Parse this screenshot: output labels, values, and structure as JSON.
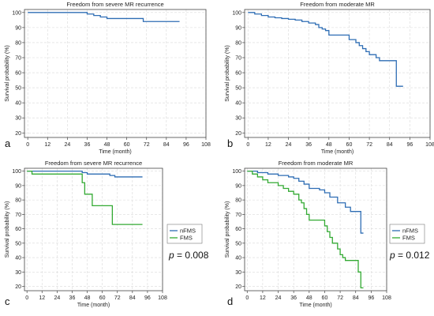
{
  "chart_data": [
    {
      "type": "line",
      "panel_letter": "a",
      "title": "Freedom from severe MR recurrence",
      "xlabel": "Time (month)",
      "ylabel": "Survival probability (%)",
      "xticks": [
        0,
        12,
        24,
        36,
        48,
        60,
        72,
        84,
        96,
        108
      ],
      "yticks": [
        20,
        30,
        40,
        50,
        60,
        70,
        80,
        90,
        100
      ],
      "xlim": [
        -2,
        108
      ],
      "ylim": [
        17,
        102
      ],
      "grid": true,
      "series": [
        {
          "color": "#2e6db4",
          "x": [
            0,
            34,
            36,
            40,
            44,
            48,
            66,
            70,
            92
          ],
          "y": [
            100,
            100,
            99,
            98,
            97,
            96,
            96,
            94,
            94
          ]
        }
      ]
    },
    {
      "type": "line",
      "panel_letter": "b",
      "title": "Freedom from moderate MR",
      "xlabel": "Time (month)",
      "ylabel": "Survival probability (%)",
      "xticks": [
        0,
        12,
        24,
        36,
        48,
        60,
        72,
        84,
        96,
        108
      ],
      "yticks": [
        20,
        30,
        40,
        50,
        60,
        70,
        80,
        90,
        100
      ],
      "xlim": [
        -2,
        108
      ],
      "ylim": [
        17,
        102
      ],
      "grid": true,
      "series": [
        {
          "color": "#2e6db4",
          "x": [
            0,
            4,
            8,
            12,
            16,
            20,
            24,
            28,
            32,
            36,
            40,
            42,
            44,
            46,
            48,
            56,
            60,
            64,
            66,
            68,
            70,
            72,
            74,
            76,
            78,
            86,
            88,
            92
          ],
          "y": [
            100,
            99,
            98,
            97,
            96.5,
            96,
            95.5,
            95,
            94,
            93,
            92,
            90,
            89,
            88,
            85,
            85,
            82,
            80,
            78,
            76,
            74,
            72,
            72,
            70,
            68,
            68,
            51,
            51
          ]
        }
      ]
    },
    {
      "type": "line",
      "panel_letter": "c",
      "title": "Freedom from severe MR recurrence",
      "xlabel": "Time (month)",
      "ylabel": "Survival probability (%)",
      "xticks": [
        0,
        12,
        24,
        36,
        48,
        60,
        72,
        84,
        96,
        108
      ],
      "yticks": [
        20,
        30,
        40,
        50,
        60,
        70,
        80,
        90,
        100
      ],
      "xlim": [
        -2,
        108
      ],
      "ylim": [
        17,
        102
      ],
      "grid": true,
      "p_value_prefix": "p",
      "p_value_text": "= 0.008",
      "legend": [
        "nFMS",
        "FMS"
      ],
      "series": [
        {
          "name": "nFMS",
          "color": "#2e6db4",
          "x": [
            0,
            36,
            44,
            48,
            66,
            70,
            92
          ],
          "y": [
            100,
            100,
            99,
            98,
            97,
            96,
            96
          ]
        },
        {
          "name": "FMS",
          "color": "#33aa33",
          "x": [
            0,
            4,
            42,
            44,
            46,
            52,
            66,
            68,
            92
          ],
          "y": [
            100,
            98,
            98,
            92,
            84,
            76,
            76,
            63,
            63
          ]
        }
      ]
    },
    {
      "type": "line",
      "panel_letter": "d",
      "title": "Freedom from moderate MR",
      "xlabel": "Time (month)",
      "ylabel": "Survival probability (%)",
      "xticks": [
        0,
        12,
        24,
        36,
        48,
        60,
        72,
        84,
        96,
        108
      ],
      "yticks": [
        20,
        30,
        40,
        50,
        60,
        70,
        80,
        90,
        100
      ],
      "xlim": [
        -2,
        108
      ],
      "ylim": [
        17,
        102
      ],
      "grid": true,
      "p_value_prefix": "p",
      "p_value_text": "= 0.012",
      "legend": [
        "nFMS",
        "FMS"
      ],
      "series": [
        {
          "name": "nFMS",
          "color": "#2e6db4",
          "x": [
            0,
            8,
            16,
            24,
            32,
            36,
            40,
            44,
            48,
            56,
            60,
            64,
            70,
            76,
            80,
            86,
            88,
            90
          ],
          "y": [
            100,
            99,
            98,
            97,
            96,
            95,
            93,
            91,
            88,
            87,
            85,
            82,
            78,
            75,
            72,
            72,
            57,
            57
          ]
        },
        {
          "name": "FMS",
          "color": "#33aa33",
          "x": [
            0,
            4,
            8,
            12,
            16,
            24,
            28,
            32,
            36,
            40,
            42,
            44,
            46,
            48,
            56,
            60,
            62,
            64,
            66,
            70,
            72,
            74,
            76,
            78,
            84,
            86,
            88,
            90
          ],
          "y": [
            100,
            98,
            96,
            94,
            92,
            90,
            88,
            86,
            84,
            80,
            78,
            74,
            70,
            66,
            66,
            62,
            58,
            54,
            50,
            46,
            42,
            40,
            38,
            38,
            38,
            30,
            19,
            19
          ]
        }
      ]
    }
  ]
}
